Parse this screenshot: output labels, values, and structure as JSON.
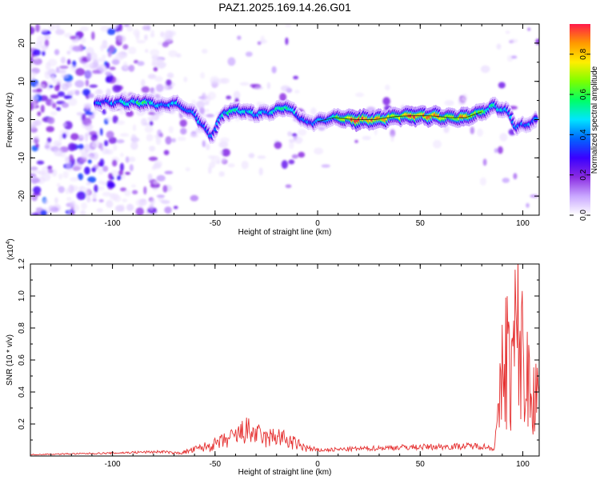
{
  "title": "PAZ1.2025.169.14.26.G01",
  "colors": {
    "snr_line": "#e53030",
    "colormap": [
      "#ffffff",
      "#c9a7ff",
      "#8a2be2",
      "#3a00ff",
      "#0066ff",
      "#00e5ff",
      "#00ff66",
      "#7cff00",
      "#ffee00",
      "#ff9900",
      "#ff1a4a"
    ]
  },
  "chart_data": [
    {
      "type": "heatmap",
      "title": "PAZ1.2025.169.14.26.G01",
      "xlabel": "Height of straight line (km)",
      "ylabel": "Frequency (Hz)",
      "xlim": [
        -140,
        108
      ],
      "ylim": [
        -25,
        25
      ],
      "xticks": [
        -100,
        -50,
        0,
        50,
        100
      ],
      "yticks": [
        -20,
        -10,
        0,
        10,
        20
      ],
      "colorbar": {
        "label": "Normalized spectral amplitude",
        "range": [
          0,
          0.95
        ],
        "ticks": [
          "0.0",
          "0.2",
          "0.4",
          "0.6",
          "0.8"
        ]
      },
      "ridge": [
        {
          "x": -108,
          "f": 4.5,
          "a": 0.35
        },
        {
          "x": -96,
          "f": 4.5,
          "a": 0.45
        },
        {
          "x": -90,
          "f": 4.5,
          "a": 0.5
        },
        {
          "x": -85,
          "f": 4.5,
          "a": 0.55
        },
        {
          "x": -80,
          "f": 4.2,
          "a": 0.45
        },
        {
          "x": -75,
          "f": 3.5,
          "a": 0.4
        },
        {
          "x": -70,
          "f": 4.5,
          "a": 0.5
        },
        {
          "x": -65,
          "f": 3.0,
          "a": 0.35
        },
        {
          "x": -60,
          "f": 1.5,
          "a": 0.45
        },
        {
          "x": -55,
          "f": -2.0,
          "a": 0.4
        },
        {
          "x": -52,
          "f": -4.5,
          "a": 0.35
        },
        {
          "x": -45,
          "f": 2.0,
          "a": 0.5
        },
        {
          "x": -38,
          "f": 2.5,
          "a": 0.5
        },
        {
          "x": -30,
          "f": 1.5,
          "a": 0.45
        },
        {
          "x": -22,
          "f": 2.0,
          "a": 0.45
        },
        {
          "x": -15,
          "f": 3.5,
          "a": 0.6
        },
        {
          "x": -8,
          "f": 0.5,
          "a": 0.35
        },
        {
          "x": -5,
          "f": -1.0,
          "a": 0.4
        },
        {
          "x": 0,
          "f": -0.5,
          "a": 0.4
        },
        {
          "x": 8,
          "f": 0.5,
          "a": 0.5
        },
        {
          "x": 18,
          "f": 0.0,
          "a": 0.95
        },
        {
          "x": 28,
          "f": 0.0,
          "a": 0.85
        },
        {
          "x": 38,
          "f": 0.8,
          "a": 0.75
        },
        {
          "x": 45,
          "f": 1.0,
          "a": 0.85
        },
        {
          "x": 55,
          "f": 1.0,
          "a": 0.9
        },
        {
          "x": 65,
          "f": 0.5,
          "a": 0.7
        },
        {
          "x": 72,
          "f": 0.5,
          "a": 0.8
        },
        {
          "x": 80,
          "f": 2.0,
          "a": 0.6
        },
        {
          "x": 86,
          "f": 3.5,
          "a": 0.5
        },
        {
          "x": 93,
          "f": 2.0,
          "a": 0.45
        },
        {
          "x": 97,
          "f": -2.0,
          "a": 0.35
        },
        {
          "x": 103,
          "f": -1.0,
          "a": 0.4
        },
        {
          "x": 107,
          "f": 0.0,
          "a": 0.35
        }
      ]
    },
    {
      "type": "line",
      "xlabel": "Height of straight line (km)",
      "ylabel": "SNR (10 * v/v)",
      "yscale_label": "(x10",
      "yscale_exponent": "4",
      "xlim": [
        -140,
        108
      ],
      "ylim": [
        0,
        1.2
      ],
      "xticks": [
        -100,
        -50,
        0,
        50,
        100
      ],
      "yticks": [
        "0.2",
        "0.4",
        "0.6",
        "0.8",
        "1.0",
        "1.2"
      ],
      "series": [
        {
          "x": [
            -140,
            -120,
            -100,
            -90,
            -75,
            -70,
            -65,
            -60,
            -55,
            -50,
            -45,
            -40,
            -35,
            -30,
            -25,
            -20,
            -15,
            -10,
            -5,
            0,
            20,
            40,
            60,
            80,
            86,
            88,
            90,
            92,
            94,
            96,
            98,
            100,
            102,
            105,
            108
          ],
          "y": [
            0.01,
            0.015,
            0.02,
            0.025,
            0.03,
            0.02,
            0.03,
            0.05,
            0.07,
            0.09,
            0.12,
            0.15,
            0.2,
            0.17,
            0.13,
            0.16,
            0.12,
            0.09,
            0.06,
            0.04,
            0.05,
            0.06,
            0.065,
            0.07,
            0.05,
            0.3,
            0.75,
            1.0,
            0.7,
            1.05,
            1.15,
            0.9,
            0.7,
            0.65,
            0.6
          ]
        }
      ]
    }
  ]
}
